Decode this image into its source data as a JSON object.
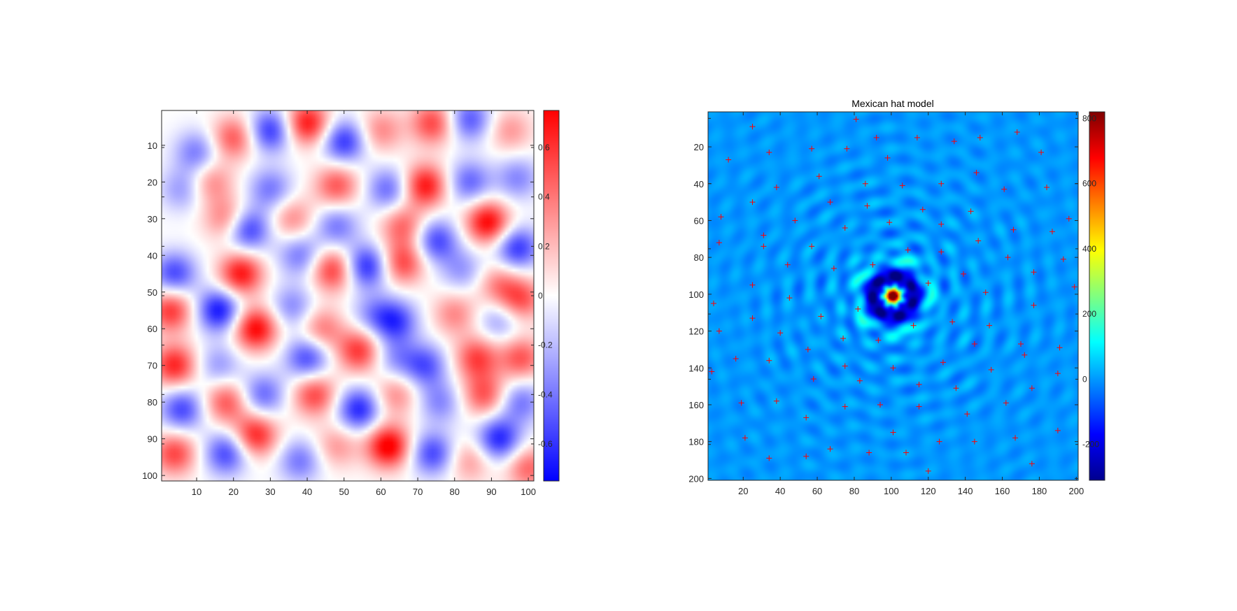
{
  "chart_data": [
    {
      "type": "heatmap",
      "title": "",
      "xlabel": "",
      "ylabel": "",
      "xlim": [
        0.5,
        101.5
      ],
      "ylim": [
        0.5,
        101.5
      ],
      "y_reversed": true,
      "xticks": [
        10,
        20,
        30,
        40,
        50,
        60,
        70,
        80,
        90,
        100
      ],
      "yticks": [
        10,
        20,
        30,
        40,
        50,
        60,
        70,
        80,
        90,
        100
      ],
      "colormap": "blue-white-red",
      "color_low": "#0000ff",
      "color_mid": "#ffffff",
      "color_high": "#ff0000",
      "clim": [
        -0.75,
        0.75
      ],
      "colorbar_ticks": [
        -0.6,
        -0.4,
        -0.2,
        0,
        0.2,
        0.4,
        0.6
      ],
      "colorbar_tick_labels": [
        "-0.6",
        "-0.4",
        "-0.2",
        "0",
        "0.2",
        "0.4",
        "0.6"
      ],
      "colorbar_position": "right",
      "field_blobs": [
        {
          "x": 20,
          "y": 8,
          "v": 0.5
        },
        {
          "x": 30,
          "y": 6,
          "v": -0.6
        },
        {
          "x": 40,
          "y": 4,
          "v": 0.7
        },
        {
          "x": 50,
          "y": 9,
          "v": -0.6
        },
        {
          "x": 60,
          "y": 6,
          "v": 0.35
        },
        {
          "x": 74,
          "y": 4,
          "v": 0.55
        },
        {
          "x": 84,
          "y": 3,
          "v": -0.5
        },
        {
          "x": 95,
          "y": 6,
          "v": 0.3
        },
        {
          "x": 10,
          "y": 12,
          "v": -0.4
        },
        {
          "x": 6,
          "y": 22,
          "v": -0.3
        },
        {
          "x": 14,
          "y": 20,
          "v": 0.35
        },
        {
          "x": 30,
          "y": 22,
          "v": -0.4
        },
        {
          "x": 48,
          "y": 21,
          "v": 0.5
        },
        {
          "x": 62,
          "y": 22,
          "v": -0.45
        },
        {
          "x": 72,
          "y": 21,
          "v": 0.7
        },
        {
          "x": 84,
          "y": 20,
          "v": -0.45
        },
        {
          "x": 97,
          "y": 19,
          "v": -0.35
        },
        {
          "x": 18,
          "y": 30,
          "v": 0.4
        },
        {
          "x": 24,
          "y": 33,
          "v": -0.6
        },
        {
          "x": 36,
          "y": 30,
          "v": 0.35
        },
        {
          "x": 48,
          "y": 32,
          "v": -0.4
        },
        {
          "x": 66,
          "y": 32,
          "v": 0.45
        },
        {
          "x": 75,
          "y": 36,
          "v": -0.55
        },
        {
          "x": 89,
          "y": 31,
          "v": 0.75
        },
        {
          "x": 97,
          "y": 38,
          "v": -0.6
        },
        {
          "x": 4,
          "y": 45,
          "v": -0.55
        },
        {
          "x": 22,
          "y": 45,
          "v": 0.7
        },
        {
          "x": 38,
          "y": 40,
          "v": -0.4
        },
        {
          "x": 47,
          "y": 44,
          "v": 0.6
        },
        {
          "x": 56,
          "y": 43,
          "v": -0.65
        },
        {
          "x": 66,
          "y": 42,
          "v": 0.55
        },
        {
          "x": 82,
          "y": 44,
          "v": -0.3
        },
        {
          "x": 92,
          "y": 48,
          "v": 0.35
        },
        {
          "x": 3,
          "y": 55,
          "v": 0.6
        },
        {
          "x": 16,
          "y": 55,
          "v": -0.7
        },
        {
          "x": 26,
          "y": 60,
          "v": 0.75
        },
        {
          "x": 36,
          "y": 54,
          "v": -0.35
        },
        {
          "x": 44,
          "y": 60,
          "v": 0.4
        },
        {
          "x": 58,
          "y": 56,
          "v": -0.3
        },
        {
          "x": 64,
          "y": 58,
          "v": -0.55
        },
        {
          "x": 80,
          "y": 56,
          "v": 0.35
        },
        {
          "x": 92,
          "y": 58,
          "v": -0.3
        },
        {
          "x": 98,
          "y": 52,
          "v": 0.5
        },
        {
          "x": 4,
          "y": 70,
          "v": 0.65
        },
        {
          "x": 16,
          "y": 70,
          "v": -0.3
        },
        {
          "x": 40,
          "y": 68,
          "v": -0.55
        },
        {
          "x": 54,
          "y": 66,
          "v": 0.6
        },
        {
          "x": 64,
          "y": 68,
          "v": -0.3
        },
        {
          "x": 72,
          "y": 70,
          "v": -0.5
        },
        {
          "x": 86,
          "y": 68,
          "v": 0.55
        },
        {
          "x": 98,
          "y": 68,
          "v": 0.5
        },
        {
          "x": 6,
          "y": 82,
          "v": -0.55
        },
        {
          "x": 18,
          "y": 80,
          "v": 0.5
        },
        {
          "x": 28,
          "y": 78,
          "v": -0.45
        },
        {
          "x": 42,
          "y": 78,
          "v": 0.55
        },
        {
          "x": 54,
          "y": 82,
          "v": -0.65
        },
        {
          "x": 64,
          "y": 78,
          "v": 0.35
        },
        {
          "x": 76,
          "y": 80,
          "v": -0.35
        },
        {
          "x": 88,
          "y": 78,
          "v": 0.5
        },
        {
          "x": 98,
          "y": 80,
          "v": -0.4
        },
        {
          "x": 4,
          "y": 94,
          "v": 0.55
        },
        {
          "x": 18,
          "y": 94,
          "v": -0.55
        },
        {
          "x": 26,
          "y": 89,
          "v": 0.65
        },
        {
          "x": 38,
          "y": 96,
          "v": -0.4
        },
        {
          "x": 48,
          "y": 92,
          "v": 0.3
        },
        {
          "x": 62,
          "y": 92,
          "v": 0.8
        },
        {
          "x": 74,
          "y": 94,
          "v": -0.55
        },
        {
          "x": 84,
          "y": 96,
          "v": 0.3
        },
        {
          "x": 92,
          "y": 90,
          "v": -0.65
        },
        {
          "x": 100,
          "y": 98,
          "v": 0.45
        }
      ]
    },
    {
      "type": "heatmap",
      "title": "Mexican hat model",
      "xlabel": "",
      "ylabel": "",
      "xlim": [
        1,
        201
      ],
      "ylim": [
        1,
        201
      ],
      "y_reversed": true,
      "xticks": [
        20,
        40,
        60,
        80,
        100,
        120,
        140,
        160,
        180,
        200
      ],
      "yticks": [
        20,
        40,
        60,
        80,
        100,
        120,
        140,
        160,
        180,
        200
      ],
      "colormap": "jet",
      "clim": [
        -310,
        820
      ],
      "colorbar_ticks": [
        -200,
        0,
        200,
        400,
        600,
        800
      ],
      "colorbar_tick_labels": [
        "-200",
        "0",
        "200",
        "400",
        "600",
        "800"
      ],
      "colorbar_position": "right",
      "background_value": 0,
      "center": [
        101,
        101
      ],
      "peak_value": 800,
      "trough_value": -300,
      "marker_color": "#ff0000",
      "marker_symbol": "+",
      "markers": [
        [
          81,
          5
        ],
        [
          25,
          9
        ],
        [
          168,
          12
        ],
        [
          92,
          15
        ],
        [
          114,
          15
        ],
        [
          148,
          15
        ],
        [
          134,
          17
        ],
        [
          57,
          21
        ],
        [
          76,
          21
        ],
        [
          34,
          23
        ],
        [
          181,
          23
        ],
        [
          98,
          26
        ],
        [
          12,
          27
        ],
        [
          146,
          34
        ],
        [
          61,
          36
        ],
        [
          86,
          40
        ],
        [
          127,
          40
        ],
        [
          106,
          41
        ],
        [
          38,
          42
        ],
        [
          161,
          43
        ],
        [
          184,
          42
        ],
        [
          25,
          50
        ],
        [
          67,
          50
        ],
        [
          87,
          52
        ],
        [
          117,
          54
        ],
        [
          143,
          55
        ],
        [
          8,
          58
        ],
        [
          196,
          59
        ],
        [
          48,
          60
        ],
        [
          99,
          61
        ],
        [
          127,
          62
        ],
        [
          75,
          64
        ],
        [
          166,
          65
        ],
        [
          187,
          66
        ],
        [
          31,
          68
        ],
        [
          147,
          71
        ],
        [
          7,
          72
        ],
        [
          31,
          74
        ],
        [
          57,
          74
        ],
        [
          109,
          76
        ],
        [
          127,
          77
        ],
        [
          163,
          80
        ],
        [
          193,
          81
        ],
        [
          44,
          84
        ],
        [
          90,
          84
        ],
        [
          69,
          86
        ],
        [
          177,
          88
        ],
        [
          139,
          89
        ],
        [
          120,
          94
        ],
        [
          25,
          95
        ],
        [
          199,
          96
        ],
        [
          151,
          99
        ],
        [
          45,
          102
        ],
        [
          4,
          105
        ],
        [
          177,
          106
        ],
        [
          82,
          108
        ],
        [
          62,
          112
        ],
        [
          25,
          113
        ],
        [
          133,
          115
        ],
        [
          112,
          117
        ],
        [
          153,
          117
        ],
        [
          7,
          120
        ],
        [
          40,
          121
        ],
        [
          74,
          124
        ],
        [
          93,
          125
        ],
        [
          145,
          127
        ],
        [
          170,
          127
        ],
        [
          191,
          129
        ],
        [
          55,
          130
        ],
        [
          172,
          133
        ],
        [
          16,
          135
        ],
        [
          34,
          136
        ],
        [
          128,
          137
        ],
        [
          75,
          139
        ],
        [
          101,
          140
        ],
        [
          154,
          141
        ],
        [
          3,
          142
        ],
        [
          190,
          143
        ],
        [
          58,
          146
        ],
        [
          83,
          147
        ],
        [
          115,
          149
        ],
        [
          176,
          151
        ],
        [
          135,
          151
        ],
        [
          38,
          158
        ],
        [
          19,
          159
        ],
        [
          162,
          159
        ],
        [
          94,
          160
        ],
        [
          75,
          161
        ],
        [
          115,
          161
        ],
        [
          141,
          165
        ],
        [
          54,
          167
        ],
        [
          190,
          174
        ],
        [
          101,
          175
        ],
        [
          21,
          178
        ],
        [
          167,
          178
        ],
        [
          126,
          180
        ],
        [
          145,
          180
        ],
        [
          67,
          184
        ],
        [
          88,
          186
        ],
        [
          108,
          186
        ],
        [
          54,
          188
        ],
        [
          34,
          189
        ],
        [
          176,
          192
        ],
        [
          120,
          196
        ]
      ]
    }
  ]
}
